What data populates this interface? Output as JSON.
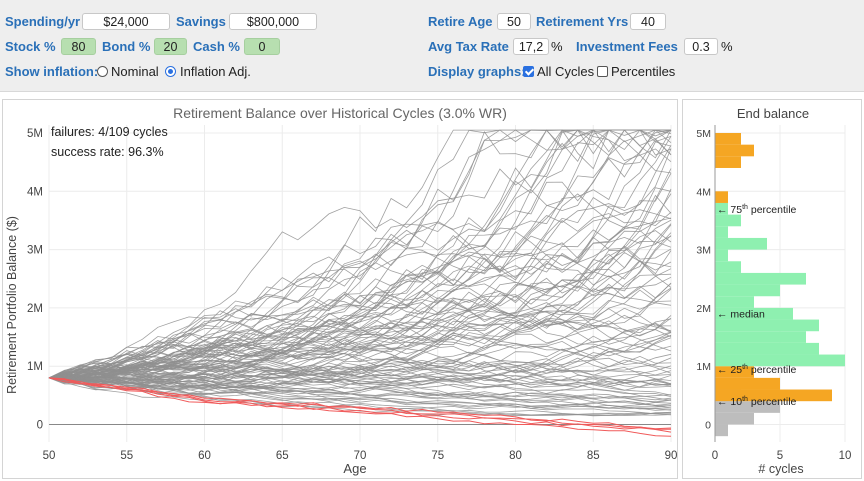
{
  "controls": {
    "spending_label": "Spending/yr",
    "spending_value": "$24,000",
    "savings_label": "Savings",
    "savings_value": "$800,000",
    "stock_label": "Stock %",
    "stock_value": "80",
    "bond_label": "Bond %",
    "bond_value": "20",
    "cash_label": "Cash %",
    "cash_value": "0",
    "inflation_label": "Show inflation:",
    "nominal_label": "Nominal",
    "inflation_adj_label": "Inflation Adj.",
    "inflation_selected": "Inflation Adj.",
    "retire_age_label": "Retire Age",
    "retire_age_value": "50",
    "retirement_yrs_label": "Retirement Yrs",
    "retirement_yrs_value": "40",
    "tax_label": "Avg Tax Rate",
    "tax_value": "17,2",
    "tax_unit": "%",
    "fees_label": "Investment Fees",
    "fees_value": "0.3",
    "fees_unit": "%",
    "display_label": "Display graphs:",
    "all_cycles_label": "All Cycles",
    "all_cycles_checked": true,
    "percentiles_label": "Percentiles",
    "percentiles_checked": false
  },
  "main_chart": {
    "title": "Retirement Balance over Historical Cycles (3.0% WR)",
    "failures_text": "failures: 4/109 cycles",
    "success_text": "success rate: 96.3%",
    "xlabel": "Age",
    "ylabel": "Retirement Portfolio Balance ($)",
    "xticks": [
      "50",
      "55",
      "60",
      "65",
      "70",
      "75",
      "80",
      "85",
      "90"
    ],
    "yticks": [
      "0",
      "1M",
      "2M",
      "3M",
      "4M",
      "5M"
    ],
    "line_color": "#8f8f8f",
    "fail_color": "#f05a5a"
  },
  "chart_data": [
    {
      "type": "line",
      "title": "Retirement Balance over Historical Cycles (3.0% WR)",
      "xlabel": "Age",
      "ylabel": "Retirement Portfolio Balance ($)",
      "xlim": [
        50,
        90
      ],
      "ylim": [
        -300000,
        5000000
      ],
      "start_balance": 800000,
      "cycles_total": 109,
      "failures": 4,
      "success_rate_pct": 96.3,
      "grid": true,
      "representative_series": [
        {
          "x": [
            50,
            55,
            60,
            65,
            70,
            75,
            80,
            85,
            90
          ],
          "values": [
            800000,
            1300000,
            1900000,
            2400000,
            3000000,
            3600000,
            4200000,
            4700000,
            5000000
          ]
        },
        {
          "x": [
            50,
            55,
            60,
            65,
            70,
            75,
            80,
            85,
            90
          ],
          "values": [
            800000,
            1200000,
            1600000,
            2000000,
            2500000,
            3000000,
            3500000,
            4000000,
            4600000
          ]
        },
        {
          "x": [
            50,
            55,
            60,
            65,
            70,
            75,
            80,
            85,
            90
          ],
          "values": [
            800000,
            1100000,
            1400000,
            1700000,
            2000000,
            2400000,
            2800000,
            3200000,
            3700000
          ]
        },
        {
          "x": [
            50,
            55,
            60,
            65,
            70,
            75,
            80,
            85,
            90
          ],
          "values": [
            800000,
            1000000,
            1250000,
            1500000,
            1700000,
            2000000,
            2300000,
            2700000,
            3000000
          ]
        },
        {
          "x": [
            50,
            55,
            60,
            65,
            70,
            75,
            80,
            85,
            90
          ],
          "values": [
            800000,
            950000,
            1100000,
            1250000,
            1400000,
            1600000,
            1800000,
            2000000,
            2300000
          ]
        },
        {
          "x": [
            50,
            55,
            60,
            65,
            70,
            75,
            80,
            85,
            90
          ],
          "values": [
            800000,
            900000,
            1000000,
            1050000,
            1150000,
            1250000,
            1350000,
            1500000,
            1700000
          ]
        },
        {
          "x": [
            50,
            55,
            60,
            65,
            70,
            75,
            80,
            85,
            90
          ],
          "values": [
            800000,
            850000,
            900000,
            900000,
            950000,
            1000000,
            1050000,
            1150000,
            1250000
          ]
        },
        {
          "x": [
            50,
            55,
            60,
            65,
            70,
            75,
            80,
            85,
            90
          ],
          "values": [
            800000,
            800000,
            800000,
            750000,
            750000,
            800000,
            800000,
            850000,
            900000
          ]
        },
        {
          "x": [
            50,
            55,
            60,
            65,
            70,
            75,
            80,
            85,
            90
          ],
          "values": [
            800000,
            750000,
            700000,
            650000,
            600000,
            600000,
            600000,
            600000,
            650000
          ]
        },
        {
          "x": [
            50,
            55,
            60,
            65,
            70,
            75,
            80,
            85,
            90
          ],
          "values": [
            800000,
            700000,
            600000,
            550000,
            500000,
            450000,
            400000,
            400000,
            400000
          ]
        },
        {
          "x": [
            50,
            55,
            60,
            65,
            70,
            75,
            80,
            85,
            90
          ],
          "values": [
            800000,
            650000,
            550000,
            480000,
            420000,
            380000,
            320000,
            280000,
            250000
          ]
        },
        {
          "x": [
            50,
            55,
            60,
            65,
            70,
            75,
            80,
            85,
            90
          ],
          "values": [
            800000,
            1400000,
            2200000,
            2800000,
            3200000,
            3800000,
            4400000,
            4900000,
            5000000
          ]
        },
        {
          "x": [
            50,
            55,
            60,
            65,
            70,
            75,
            80,
            85,
            90
          ],
          "values": [
            800000,
            1050000,
            1500000,
            1900000,
            2300000,
            2600000,
            3000000,
            3400000,
            3900000
          ]
        },
        {
          "x": [
            50,
            55,
            60,
            65,
            70,
            75,
            80,
            85,
            90
          ],
          "values": [
            800000,
            900000,
            1200000,
            1350000,
            1600000,
            1800000,
            2100000,
            2500000,
            2800000
          ]
        }
      ],
      "failed_series": [
        {
          "x": [
            50,
            55,
            60,
            65,
            70,
            75,
            80,
            85,
            90
          ],
          "values": [
            800000,
            620000,
            420000,
            350000,
            280000,
            180000,
            100000,
            0,
            -80000
          ]
        },
        {
          "x": [
            50,
            55,
            60,
            65,
            70,
            75,
            80,
            85,
            90
          ],
          "values": [
            800000,
            600000,
            400000,
            320000,
            240000,
            150000,
            60000,
            -30000,
            -130000
          ]
        },
        {
          "x": [
            50,
            55,
            60,
            65,
            70,
            75,
            80,
            85,
            90
          ],
          "values": [
            800000,
            580000,
            380000,
            290000,
            200000,
            100000,
            0,
            -90000,
            -200000
          ]
        },
        {
          "x": [
            50,
            55,
            60,
            65,
            70,
            75,
            80,
            85,
            90
          ],
          "values": [
            800000,
            640000,
            450000,
            370000,
            300000,
            210000,
            130000,
            20000,
            -60000
          ]
        }
      ]
    },
    {
      "type": "bar",
      "orientation": "horizontal",
      "title": "End balance",
      "xlabel": "# cycles",
      "xticks": [
        "0",
        "5",
        "10"
      ],
      "yticks": [
        "0",
        "1M",
        "2M",
        "3M",
        "4M",
        "5M"
      ],
      "xlim": [
        0,
        10.5
      ],
      "ylim": [
        -300000,
        5000000
      ],
      "bin_width": 200000,
      "bins": [
        {
          "y0": -200000,
          "y1": 0,
          "count": 1,
          "color": "#bdbdbd"
        },
        {
          "y0": 0,
          "y1": 200000,
          "count": 3,
          "color": "#bdbdbd"
        },
        {
          "y0": 200000,
          "y1": 400000,
          "count": 5,
          "color": "#bdbdbd"
        },
        {
          "y0": 400000,
          "y1": 600000,
          "count": 2,
          "color": "#bdbdbd"
        },
        {
          "y0": 400000,
          "y1": 600000,
          "count": 9,
          "color": "#f5a623"
        },
        {
          "y0": 600000,
          "y1": 800000,
          "count": 5,
          "color": "#f5a623"
        },
        {
          "y0": 800000,
          "y1": 1000000,
          "count": 3,
          "color": "#f5a623"
        },
        {
          "y0": 1000000,
          "y1": 1200000,
          "count": 10,
          "color": "#8ef0b0"
        },
        {
          "y0": 1200000,
          "y1": 1400000,
          "count": 8,
          "color": "#8ef0b0"
        },
        {
          "y0": 1400000,
          "y1": 1600000,
          "count": 7,
          "color": "#8ef0b0"
        },
        {
          "y0": 1600000,
          "y1": 1800000,
          "count": 8,
          "color": "#8ef0b0"
        },
        {
          "y0": 1800000,
          "y1": 2000000,
          "count": 6,
          "color": "#8ef0b0"
        },
        {
          "y0": 2000000,
          "y1": 2200000,
          "count": 3,
          "color": "#8ef0b0"
        },
        {
          "y0": 2200000,
          "y1": 2400000,
          "count": 5,
          "color": "#8ef0b0"
        },
        {
          "y0": 2400000,
          "y1": 2600000,
          "count": 7,
          "color": "#8ef0b0"
        },
        {
          "y0": 2600000,
          "y1": 2800000,
          "count": 2,
          "color": "#8ef0b0"
        },
        {
          "y0": 2800000,
          "y1": 3000000,
          "count": 1,
          "color": "#8ef0b0"
        },
        {
          "y0": 3000000,
          "y1": 3200000,
          "count": 4,
          "color": "#8ef0b0"
        },
        {
          "y0": 3200000,
          "y1": 3400000,
          "count": 1,
          "color": "#8ef0b0"
        },
        {
          "y0": 3400000,
          "y1": 3600000,
          "count": 2,
          "color": "#8ef0b0"
        },
        {
          "y0": 3600000,
          "y1": 3800000,
          "count": 1,
          "color": "#8ef0b0"
        },
        {
          "y0": 3800000,
          "y1": 4000000,
          "count": 1,
          "color": "#f5a623"
        },
        {
          "y0": 4000000,
          "y1": 4200000,
          "count": 0,
          "color": "#f5a623"
        },
        {
          "y0": 4400000,
          "y1": 4600000,
          "count": 2,
          "color": "#f5a623"
        },
        {
          "y0": 4600000,
          "y1": 4800000,
          "count": 3,
          "color": "#f5a623"
        },
        {
          "y0": 4800000,
          "y1": 5000000,
          "count": 2,
          "color": "#f5a623"
        }
      ],
      "annotations": [
        {
          "label": "75",
          "sup": "th",
          "suffix": "percentile",
          "value": 3700000
        },
        {
          "label": "median",
          "sup": "",
          "suffix": "",
          "value": 1900000
        },
        {
          "label": "25",
          "sup": "th",
          "suffix": "percentile",
          "value": 950000
        },
        {
          "label": "10",
          "sup": "th",
          "suffix": "percentile",
          "value": 400000
        }
      ]
    }
  ]
}
